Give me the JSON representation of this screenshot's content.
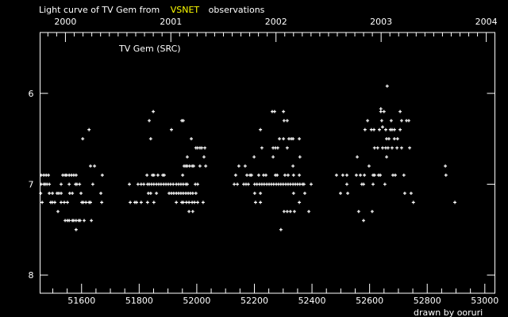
{
  "chart_data": {
    "type": "scatter",
    "title_parts": [
      "Light curve of TV Gem from",
      "VSNET",
      "observations"
    ],
    "legend_label": "TV Gem (SRC)",
    "credit": "drawn by ooruri",
    "xlabel": "",
    "ylabel": "",
    "xlim": [
      51456,
      53035
    ],
    "ylim": [
      8.2,
      5.33
    ],
    "y_inverted": true,
    "grid": false,
    "x_ticks": [
      "51600",
      "51800",
      "52000",
      "52200",
      "52400",
      "52600",
      "52800",
      "53000"
    ],
    "x_tick_values": [
      51600,
      51800,
      52000,
      52200,
      52400,
      52600,
      52800,
      53000
    ],
    "top_axis_ticks": [
      "2000",
      "2001",
      "2002",
      "2003",
      "2004"
    ],
    "top_axis_tick_mjd": [
      51544,
      51910,
      52275,
      52640,
      53005
    ],
    "y_ticks": [
      "6",
      "7",
      "8"
    ],
    "y_tick_values": [
      6,
      7,
      8
    ],
    "colors": {
      "background": "#000000",
      "axes": "#ffffff",
      "points": "#ffffff",
      "highlight": "#ffff00",
      "credit": "#00e0ff"
    },
    "marker": "plus",
    "points_by_mag": [
      {
        "mag": 5.92,
        "mjd": [
          52661
        ]
      },
      {
        "mag": 6.17,
        "mjd": [
          52639
        ]
      },
      {
        "mag": 6.2,
        "mjd": [
          51849,
          52262,
          52270,
          52301,
          52639,
          52650,
          52706
        ]
      },
      {
        "mag": 6.3,
        "mjd": [
          51835,
          51948,
          51953,
          52303,
          52314,
          52593,
          52642,
          52675,
          52711,
          52728,
          52736
        ]
      },
      {
        "mag": 6.37,
        "mjd": [
          52645
        ]
      },
      {
        "mag": 6.4,
        "mjd": [
          51626,
          51912,
          52221,
          52584,
          52606,
          52615,
          52634,
          52656,
          52672,
          52678,
          52686,
          52706
        ]
      },
      {
        "mag": 6.5,
        "mjd": [
          51604,
          51840,
          51981,
          52287,
          52301,
          52320,
          52328,
          52334,
          52356,
          52659,
          52667,
          52686,
          52697
        ]
      },
      {
        "mag": 6.6,
        "mjd": [
          51997,
          52003,
          52011,
          52017,
          52028,
          52226,
          52265,
          52273,
          52281,
          52314,
          52617,
          52628,
          52645,
          52656,
          52664,
          52678,
          52695,
          52711,
          52739
        ]
      },
      {
        "mag": 6.7,
        "mjd": [
          51967,
          52025,
          52199,
          52265,
          52358,
          52557,
          52659
        ]
      },
      {
        "mag": 6.8,
        "mjd": [
          51631,
          51645,
          51956,
          51962,
          51967,
          51975,
          51984,
          51989,
          52011,
          52031,
          52146,
          52168,
          52334,
          52598,
          52863
        ]
      },
      {
        "mag": 6.9,
        "mjd": [
          51460,
          51469,
          51477,
          51485,
          51535,
          51543,
          51548,
          51557,
          51565,
          51573,
          51581,
          51672,
          51827,
          51846,
          51851,
          51865,
          51882,
          51887,
          51951,
          52135,
          52174,
          52185,
          52190,
          52215,
          52232,
          52240,
          52273,
          52279,
          52306,
          52317,
          52336,
          52356,
          52485,
          52507,
          52521,
          52554,
          52568,
          52582,
          52612,
          52617,
          52631,
          52637,
          52681,
          52689,
          52719,
          52865
        ]
      },
      {
        "mag": 7.0,
        "mjd": [
          51460,
          51469,
          51474,
          51480,
          51488,
          51529,
          51557,
          51579,
          51584,
          51593,
          51639,
          51766,
          51796,
          51807,
          51816,
          51829,
          51835,
          51843,
          51851,
          51860,
          51868,
          51876,
          51885,
          51893,
          51901,
          51909,
          51918,
          51929,
          51937,
          51945,
          51953,
          51962,
          51967,
          51995,
          52003,
          52130,
          52141,
          52163,
          52171,
          52179,
          52201,
          52209,
          52218,
          52226,
          52234,
          52243,
          52251,
          52259,
          52267,
          52276,
          52284,
          52292,
          52300,
          52309,
          52317,
          52325,
          52334,
          52342,
          52350,
          52358,
          52367,
          52372,
          52397,
          52521,
          52573,
          52579,
          52612,
          52653
        ]
      },
      {
        "mag": 7.1,
        "mjd": [
          51458,
          51488,
          51499,
          51515,
          51521,
          51529,
          51559,
          51568,
          51598,
          51667,
          51832,
          51840,
          51860,
          51904,
          51912,
          51920,
          51929,
          51937,
          51945,
          51953,
          51962,
          51970,
          51978,
          51986,
          51997,
          52201,
          52221,
          52336,
          52375,
          52499,
          52524,
          52722,
          52744
        ]
      },
      {
        "mag": 7.2,
        "mjd": [
          51463,
          51493,
          51499,
          51507,
          51529,
          51540,
          51551,
          51601,
          51606,
          51615,
          51626,
          51631,
          51670,
          51769,
          51785,
          51791,
          51807,
          51829,
          51851,
          51929,
          51948,
          51953,
          51964,
          51973,
          51984,
          51992,
          52003,
          52022,
          52204,
          52221,
          52356,
          52752,
          52896
        ]
      },
      {
        "mag": 7.3,
        "mjd": [
          51518,
          51973,
          51986,
          52303,
          52314,
          52325,
          52339,
          52389,
          52562,
          52609
        ]
      },
      {
        "mag": 7.4,
        "mjd": [
          51543,
          51551,
          51557,
          51568,
          51573,
          51581,
          51590,
          51595,
          51609,
          51634,
          52579
        ]
      },
      {
        "mag": 7.5,
        "mjd": [
          51581,
          52292
        ]
      }
    ]
  }
}
